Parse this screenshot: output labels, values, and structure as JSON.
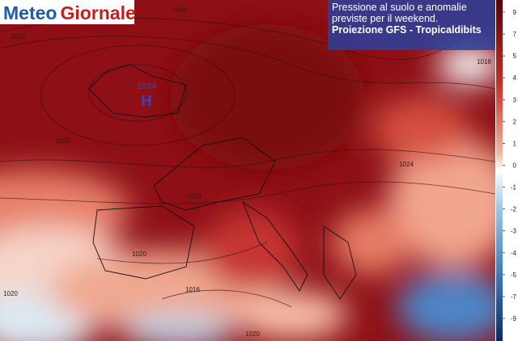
{
  "logo": {
    "part1": "Meteo",
    "part2": "Giornale"
  },
  "title": {
    "line1": "Pressione al suolo e anomalie",
    "line2": "previste per il weekend.",
    "line3": "Proiezione GFS - Tropicaldibits"
  },
  "high_center": {
    "pressure": "1034",
    "symbol": "H"
  },
  "isobar_labels": [
    "1016",
    "1016",
    "1012",
    "1016",
    "1032",
    "1024",
    "1024",
    "1020",
    "1020",
    "1016",
    "1020"
  ],
  "colorbar": {
    "ticks": [
      "9",
      "7",
      "5",
      "4",
      "3",
      "2",
      "1",
      "0",
      "-1",
      "-2",
      "-3",
      "-4",
      "-5",
      "-7",
      "-9"
    ]
  }
}
